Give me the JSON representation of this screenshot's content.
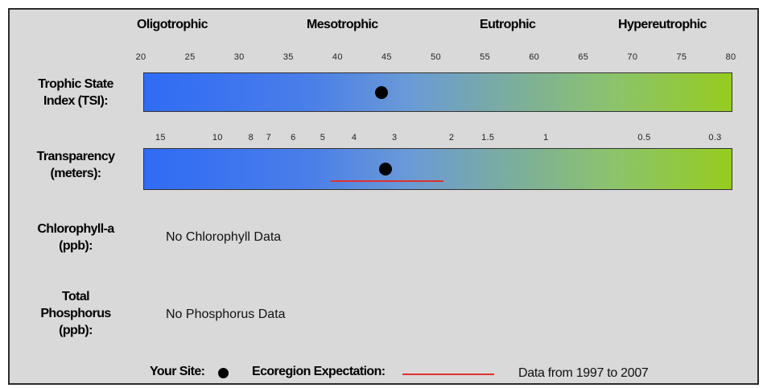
{
  "chart_data": {
    "type": "table",
    "trophic_states": [
      "Oligotrophic",
      "Mesotrophic",
      "Eutrophic",
      "Hypereutrophic"
    ],
    "tsi": {
      "label_line1": "Trophic State",
      "label_line2": "Index (TSI):",
      "ticks": [
        "20",
        "25",
        "30",
        "35",
        "40",
        "45",
        "50",
        "55",
        "60",
        "65",
        "70",
        "75",
        "80"
      ],
      "xlim": [
        20,
        80
      ],
      "site_value": 44.5
    },
    "transparency": {
      "label_line1": "Transparency",
      "label_line2": "(meters):",
      "ticks": [
        {
          "label": "15",
          "tsi": 22
        },
        {
          "label": "10",
          "tsi": 27.8
        },
        {
          "label": "8",
          "tsi": 31.2
        },
        {
          "label": "7",
          "tsi": 33
        },
        {
          "label": "6",
          "tsi": 35.5
        },
        {
          "label": "5",
          "tsi": 38.5
        },
        {
          "label": "4",
          "tsi": 41.7
        },
        {
          "label": "3",
          "tsi": 45.8
        },
        {
          "label": "2",
          "tsi": 51.6
        },
        {
          "label": "1.5",
          "tsi": 55.3
        },
        {
          "label": "1",
          "tsi": 61.2
        },
        {
          "label": "0.5",
          "tsi": 71.2
        },
        {
          "label": "0.3",
          "tsi": 78.4
        }
      ],
      "site_value_m": 2.85,
      "ecoregion_range_m": [
        4.2,
        1.9
      ]
    },
    "chlorophyll": {
      "label_line1": "Chlorophyll-a",
      "label_line2": "(ppb):",
      "message": "No Chlorophyll Data"
    },
    "phosphorus": {
      "label_line1": "Total",
      "label_line2": "Phosphorus",
      "label_line3": "(ppb):",
      "message": "No Phosphorus Data"
    },
    "legend": {
      "your_site": "Your Site:",
      "ecoregion": "Ecoregion Expectation:",
      "data_range": "Data from 1997 to 2007"
    },
    "colors": {
      "bar_start": "#2f6bf5",
      "bar_end": "#96cc1e",
      "site_marker": "#000000",
      "ecoregion_line": "#e03030",
      "background": "#d9d9d9"
    }
  }
}
